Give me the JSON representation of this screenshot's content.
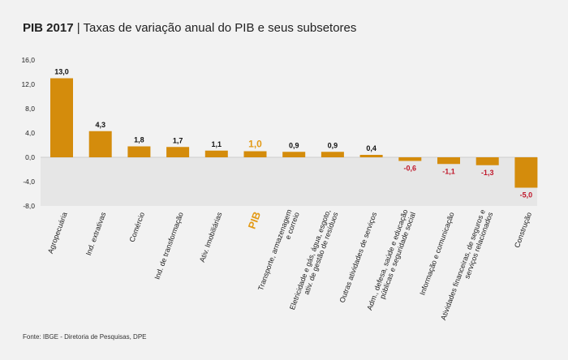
{
  "header": {
    "title_bold": "PIB 2017",
    "title_rest": " | Taxas de variação anual do PIB e seus subsetores"
  },
  "footer": {
    "source": "Fonte: IBGE - Diretoria de Pesquisas, DPE"
  },
  "colors": {
    "bar": "#d48c0c",
    "highlight": "#e39a16",
    "negative_label": "#c0182b",
    "label": "#111111",
    "negative_band": "#e6e6e6"
  },
  "chart_data": {
    "type": "bar",
    "title": "PIB 2017 | Taxas de variação anual do PIB e seus subsetores",
    "ylim": [
      -8,
      16
    ],
    "yticks": [
      16,
      12,
      8,
      4,
      0,
      -4,
      -8
    ],
    "ytick_labels": [
      "16,0",
      "12,0",
      "8,0",
      "4,0",
      "0,0",
      "-4,0",
      "-8,0"
    ],
    "grid": false,
    "categories": [
      [
        "Agropecuária"
      ],
      [
        "Ind. extrativas"
      ],
      [
        "Comércio"
      ],
      [
        "Ind. de transformação"
      ],
      [
        "Ativ. Imobiliárias"
      ],
      [
        "PIB"
      ],
      [
        "Transporte, armazenagem",
        "e correio"
      ],
      [
        "Eletricidade e gás, água, esgoto,",
        "ativ. de gestão de resíduos"
      ],
      [
        "Outras atividades de serviços"
      ],
      [
        "Adm., defesa, saúde e educação",
        "públicas e seguridade social"
      ],
      [
        "Informação e comunicação"
      ],
      [
        "Atividades financeiras, de seguros e",
        "serviços relacionados"
      ],
      [
        "Construção"
      ]
    ],
    "values": [
      13.0,
      4.3,
      1.8,
      1.7,
      1.1,
      1.0,
      0.9,
      0.9,
      0.4,
      -0.6,
      -1.1,
      -1.3,
      -5.0
    ],
    "value_labels": [
      "13,0",
      "4,3",
      "1,8",
      "1,7",
      "1,1",
      "1,0",
      "0,9",
      "0,9",
      "0,4",
      "-0,6",
      "-1,1",
      "-1,3",
      "-5,0"
    ],
    "highlight_category": "PIB"
  }
}
